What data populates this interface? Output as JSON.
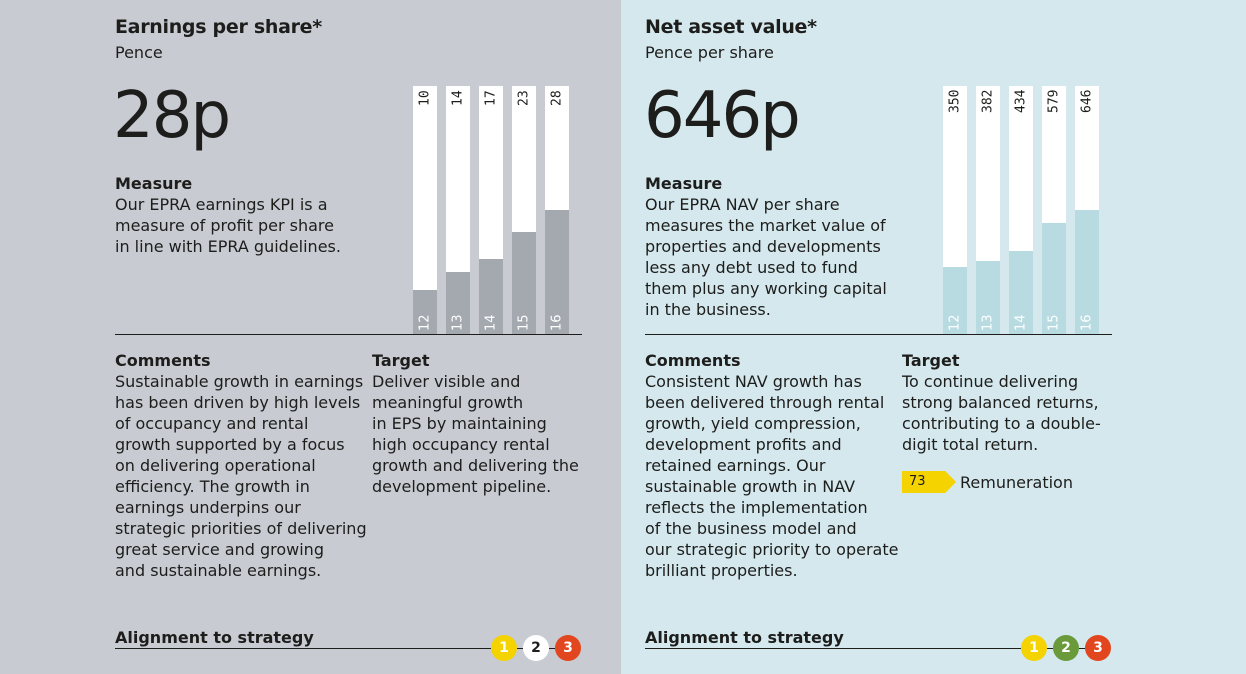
{
  "colors": {
    "left_bg": "#c8cbd2",
    "right_bg": "#d4e8ee",
    "left_bar": "#a4a9b0",
    "right_bar": "#b8dbe1",
    "strategy_1": "#f5d300",
    "strategy_2_left": "#ffffff",
    "strategy_2_right": "#6a9a3a",
    "strategy_3": "#e2461e"
  },
  "eps": {
    "title": "Earnings per share*",
    "subtitle": "Pence",
    "headline": "28p",
    "measure_heading": "Measure",
    "measure_lines": [
      "Our EPRA earnings KPI is a",
      "measure of profit per share",
      "in line with EPRA guidelines."
    ],
    "comments_heading": "Comments",
    "comments_lines": [
      "Sustainable growth in earnings",
      "has been driven by high levels",
      "of occupancy and rental",
      "growth supported by a focus",
      "on delivering operational",
      "efficiency. The growth in",
      "earnings underpins our",
      "strategic priorities of delivering",
      "great service and growing",
      "and sustainable earnings."
    ],
    "target_heading": "Target",
    "target_lines": [
      "Deliver visible and",
      "meaningful growth",
      "in EPS by maintaining",
      "high occupancy rental",
      "growth and delivering the",
      "development pipeline."
    ],
    "alignment_label": "Alignment to strategy",
    "strategy_dots": [
      "1",
      "2",
      "3"
    ]
  },
  "nav": {
    "title": "Net asset value*",
    "subtitle": "Pence per share",
    "headline": "646p",
    "measure_heading": "Measure",
    "measure_lines": [
      "Our EPRA NAV per share",
      "measures the market value of",
      "properties and developments",
      "less any debt used to fund",
      "them plus any working capital",
      "in the business."
    ],
    "comments_heading": "Comments",
    "comments_lines": [
      "Consistent NAV growth has",
      "been delivered through rental",
      "growth, yield compression,",
      "development profits and",
      "retained earnings. Our",
      "sustainable growth in NAV",
      "reflects the implementation",
      "of the business model and",
      "our strategic priority to operate",
      "brilliant properties."
    ],
    "target_heading": "Target",
    "target_lines": [
      "To continue delivering",
      "strong balanced returns,",
      "contributing to a double-",
      "digit total return."
    ],
    "page_ref": "73",
    "page_ref_label": "Remuneration",
    "alignment_label": "Alignment to strategy",
    "strategy_dots": [
      "1",
      "2",
      "3"
    ]
  },
  "chart_data": [
    {
      "type": "bar",
      "categories": [
        "12",
        "13",
        "14",
        "15",
        "16"
      ],
      "values": [
        10,
        14,
        17,
        23,
        28
      ],
      "ylim": [
        0,
        56
      ]
    },
    {
      "type": "bar",
      "categories": [
        "12",
        "13",
        "14",
        "15",
        "16"
      ],
      "values": [
        350,
        382,
        434,
        579,
        646
      ],
      "ylim": [
        0,
        1290
      ]
    }
  ]
}
